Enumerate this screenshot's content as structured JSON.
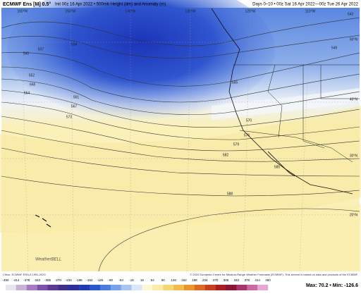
{
  "header": {
    "model": "ECMWF Ens [M] 0.5°",
    "init": "Init 00z 16 Apr 2022 • 500mb Height (dm) and Anomaly (m)",
    "valid": "Days 0–10 • 00z Sat 16 Apr 2022—00z Tue 26 Apr 2022"
  },
  "map": {
    "longitudes": [
      "160°W",
      "150°W",
      "140°W",
      "130°W",
      "120°W",
      "110°W"
    ],
    "latitudes": [
      "50°N",
      "40°N",
      "30°N",
      "20°N"
    ],
    "contours": [
      "534",
      "537",
      "540",
      "543",
      "549",
      "552",
      "555",
      "558",
      "561",
      "564",
      "567",
      "570",
      "573",
      "576",
      "579",
      "582",
      "585",
      "588"
    ],
    "watermark": "WeatherBELL"
  },
  "footer": {
    "climo": "Climo: ECMWF ERA-5 1991-2020",
    "copyright": "© 2022 European Centre for Medium-Range Weather Forecasts (ECMWF). This service is based on data and products of the ECMWF.",
    "colorbar_ticks": [
      -450,
      -414,
      -378,
      -342,
      -306,
      -270,
      -234,
      -198,
      -162,
      -126,
      -90,
      -54,
      -18,
      18,
      54,
      90,
      126,
      162,
      198,
      234,
      270,
      306,
      342,
      378,
      414,
      450
    ],
    "max_min": "Max: 70.2 • Min: -126.6"
  }
}
